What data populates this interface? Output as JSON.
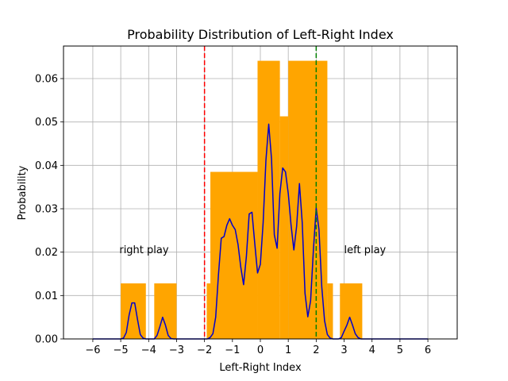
{
  "chart_data": {
    "type": "bar",
    "title": "Probability Distribution of Left-Right Index",
    "xlabel": "Left-Right Index",
    "ylabel": "Probability",
    "xlim": [
      -7.05,
      7.05
    ],
    "ylim": [
      0,
      0.0675
    ],
    "xticks": [
      -6,
      -5,
      -4,
      -3,
      -2,
      -1,
      0,
      1,
      2,
      3,
      4,
      5,
      6
    ],
    "xtick_labels": [
      "−6",
      "−5",
      "−4",
      "−3",
      "−2",
      "−1",
      "0",
      "1",
      "2",
      "3",
      "4",
      "5",
      "6"
    ],
    "yticks": [
      0,
      0.01,
      0.02,
      0.03,
      0.04,
      0.05,
      0.06
    ],
    "ytick_labels": [
      "0.00",
      "0.01",
      "0.02",
      "0.03",
      "0.04",
      "0.05",
      "0.06"
    ],
    "grid": true,
    "bar_color": "#FFA500",
    "bars": [
      {
        "x0": -5.0,
        "x1": -4.1,
        "value": 0.0128
      },
      {
        "x0": -3.8,
        "x1": -3.0,
        "value": 0.0128
      },
      {
        "x0": -1.92,
        "x1": -1.79,
        "value": 0.0128
      },
      {
        "x0": -1.79,
        "x1": -0.1,
        "value": 0.0385
      },
      {
        "x0": -0.1,
        "x1": 0.7,
        "value": 0.0641
      },
      {
        "x0": 0.7,
        "x1": 1.0,
        "value": 0.0513
      },
      {
        "x0": 1.0,
        "x1": 2.4,
        "value": 0.0641
      },
      {
        "x0": 2.4,
        "x1": 2.6,
        "value": 0.0128
      },
      {
        "x0": 2.85,
        "x1": 3.65,
        "value": 0.0128
      }
    ],
    "density_line": {
      "color": "#0000CC",
      "x": [
        -6.0,
        -5.0,
        -4.9,
        -4.8,
        -4.7,
        -4.6,
        -4.5,
        -4.4,
        -4.3,
        -4.2,
        -4.1,
        -4.0,
        -3.8,
        -3.7,
        -3.6,
        -3.5,
        -3.4,
        -3.3,
        -3.2,
        -3.1,
        -3.0,
        -2.0,
        -1.9,
        -1.8,
        -1.7,
        -1.6,
        -1.5,
        -1.4,
        -1.3,
        -1.2,
        -1.1,
        -1.0,
        -0.9,
        -0.8,
        -0.7,
        -0.6,
        -0.5,
        -0.4,
        -0.3,
        -0.2,
        -0.1,
        0.0,
        0.1,
        0.2,
        0.3,
        0.4,
        0.5,
        0.6,
        0.7,
        0.8,
        0.9,
        1.0,
        1.1,
        1.2,
        1.3,
        1.4,
        1.5,
        1.6,
        1.7,
        1.8,
        1.9,
        2.0,
        2.1,
        2.2,
        2.3,
        2.4,
        2.5,
        2.6,
        2.7,
        2.8,
        2.9,
        3.0,
        3.1,
        3.2,
        3.3,
        3.4,
        3.5,
        3.6,
        4.0,
        5.0,
        6.0
      ],
      "y": [
        0,
        0,
        0.0002,
        0.0015,
        0.0055,
        0.0083,
        0.0083,
        0.0045,
        0.001,
        0.0002,
        0,
        0,
        0,
        0.0008,
        0.0028,
        0.005,
        0.0032,
        0.0008,
        0.0001,
        0,
        0,
        0,
        0,
        0.0003,
        0.0012,
        0.005,
        0.0148,
        0.0232,
        0.0236,
        0.0262,
        0.0277,
        0.0262,
        0.0252,
        0.0218,
        0.0165,
        0.0125,
        0.019,
        0.0288,
        0.0292,
        0.022,
        0.0152,
        0.0172,
        0.0268,
        0.0412,
        0.0495,
        0.0415,
        0.024,
        0.0209,
        0.0335,
        0.0394,
        0.0385,
        0.0335,
        0.0262,
        0.0205,
        0.026,
        0.0358,
        0.0268,
        0.0105,
        0.0051,
        0.0088,
        0.0205,
        0.0302,
        0.0252,
        0.012,
        0.0042,
        0.001,
        0.0002,
        0,
        0,
        0,
        0.0003,
        0.0018,
        0.0032,
        0.005,
        0.0032,
        0.0012,
        0.0003,
        0,
        0,
        0,
        0
      ]
    },
    "reference_lines": [
      {
        "x": -2,
        "color": "#FF0000"
      },
      {
        "x": 2,
        "color": "#008000"
      }
    ],
    "annotations": [
      {
        "text": "right play",
        "x": -5.05,
        "y": 0.0198,
        "color": "#FF0000"
      },
      {
        "text": "left play",
        "x": 3.0,
        "y": 0.0198,
        "color": "#008000"
      }
    ]
  }
}
